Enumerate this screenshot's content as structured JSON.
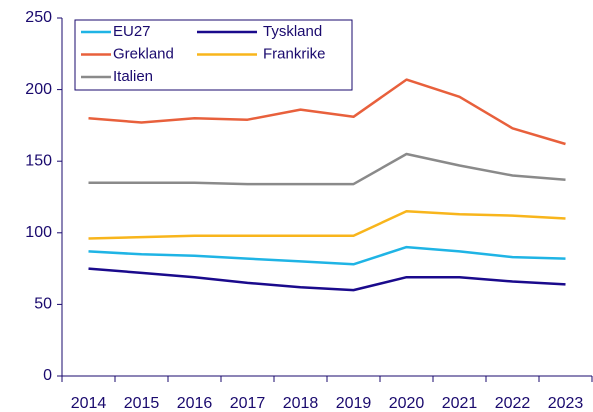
{
  "chart_data": {
    "type": "line",
    "categories": [
      "2014",
      "2015",
      "2016",
      "2017",
      "2018",
      "2019",
      "2020",
      "2021",
      "2022",
      "2023"
    ],
    "series": [
      {
        "name": "EU27",
        "color": "#1fb4e5",
        "values": [
          87,
          85,
          84,
          82,
          80,
          78,
          90,
          87,
          83,
          82
        ]
      },
      {
        "name": "Tyskland",
        "color": "#1a0a8c",
        "values": [
          75,
          72,
          69,
          65,
          62,
          60,
          69,
          69,
          66,
          64
        ]
      },
      {
        "name": "Grekland",
        "color": "#e8603c",
        "values": [
          180,
          177,
          180,
          179,
          186,
          181,
          207,
          195,
          173,
          162
        ]
      },
      {
        "name": "Frankrike",
        "color": "#f8b51c",
        "values": [
          96,
          97,
          98,
          98,
          98,
          98,
          115,
          113,
          112,
          110
        ]
      },
      {
        "name": "Italien",
        "color": "#8a8a8a",
        "values": [
          135,
          135,
          135,
          134,
          134,
          134,
          155,
          147,
          140,
          137
        ]
      }
    ],
    "ylim": [
      0,
      250
    ],
    "yticks": [
      0,
      50,
      100,
      150,
      200,
      250
    ],
    "grid": false,
    "legend": "upper left"
  }
}
